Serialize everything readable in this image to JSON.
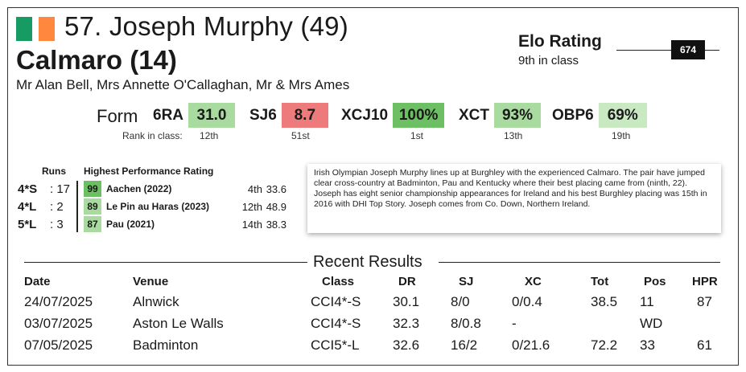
{
  "header": {
    "flag_colors": [
      "#169b62",
      "#ff883e"
    ],
    "rider_name": "57. Joseph Murphy (49)",
    "horse_name": "Calmaro (14)",
    "owners": "Mr Alan Bell, Mrs Annette O'Callaghan, Mr & Mrs Ames"
  },
  "elo": {
    "title": "Elo Rating",
    "subtitle": "9th in class",
    "value": "674"
  },
  "form": {
    "label": "Form",
    "rank_label": "Rank in class:",
    "metrics": [
      {
        "label": "6RA",
        "value": "31.0",
        "rank": "12th",
        "color": "#a9dba0"
      },
      {
        "label": "SJ6",
        "value": "8.7",
        "rank": "51st",
        "color": "#ee7b7b"
      },
      {
        "label": "XCJ10",
        "value": "100%",
        "rank": "1st",
        "color": "#6dbf63"
      },
      {
        "label": "XCT",
        "value": "93%",
        "rank": "13th",
        "color": "#a9dba0"
      },
      {
        "label": "OBP6",
        "value": "69%",
        "rank": "19th",
        "color": "#c9e9c3"
      }
    ]
  },
  "runs": {
    "header": "Runs",
    "items": [
      {
        "level": "4*S",
        "count": ": 17"
      },
      {
        "level": "4*L",
        "count": ": 2"
      },
      {
        "level": "5*L",
        "count": ": 3"
      }
    ]
  },
  "hpr": {
    "header": "Highest Performance Rating",
    "items": [
      {
        "rating": "99",
        "event": "Aachen (2022)",
        "position": "4th",
        "score": "33.6",
        "color": "#6dbf63"
      },
      {
        "rating": "89",
        "event": "Le Pin au Haras (2023)",
        "position": "12th",
        "score": "48.9",
        "color": "#a9dba0"
      },
      {
        "rating": "87",
        "event": "Pau (2021)",
        "position": "14th",
        "score": "38.3",
        "color": "#a9dba0"
      }
    ]
  },
  "bio": {
    "text": "Irish Olympian Joseph Murphy lines up at Burghley with the experienced Calmaro. The pair have jumped clear cross-country at Badminton, Pau and Kentucky where their best placing came from (ninth, 22). Joseph has eight senior championship appearances for Ireland and his best Burghley placing was 15th in 2016 with DHI Top Story. Joseph comes from Co. Down, Northern Ireland."
  },
  "results": {
    "title": "Recent Results",
    "columns": [
      "Date",
      "Venue",
      "Class",
      "DR",
      "SJ",
      "XC",
      "Tot",
      "Pos",
      "HPR"
    ],
    "rows": [
      [
        "24/07/2025",
        "Alnwick",
        "CCI4*-S",
        "30.1",
        "8/0",
        "0/0.4",
        "38.5",
        "11",
        "87"
      ],
      [
        "03/07/2025",
        "Aston Le Walls",
        "CCI4*-S",
        "32.3",
        "8/0.8",
        "-",
        "",
        "WD",
        ""
      ],
      [
        "07/05/2025",
        "Badminton",
        "CCI5*-L",
        "32.6",
        "16/2",
        "0/21.6",
        "72.2",
        "33",
        "61"
      ]
    ]
  }
}
